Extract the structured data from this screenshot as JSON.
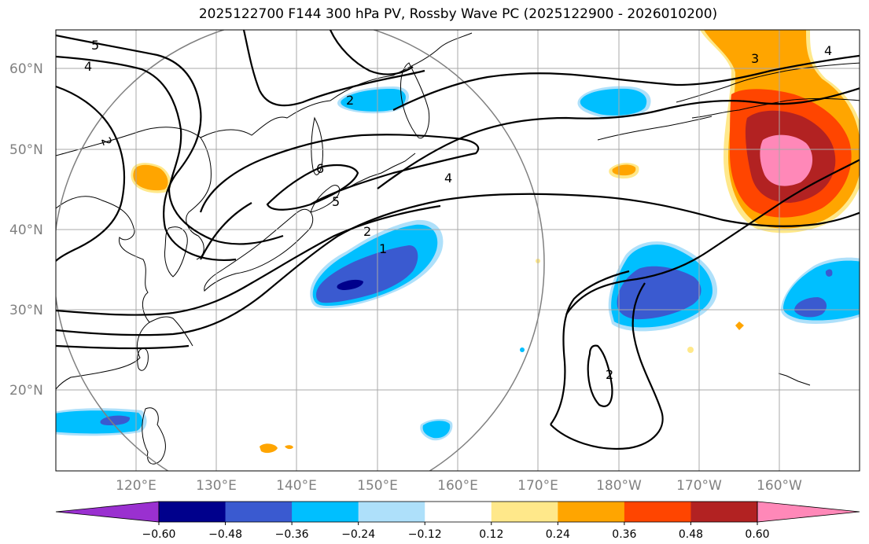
{
  "title": "2025122700 F144 300 hPa PV, Rossby Wave PC (2025122900 - 2026010200)",
  "map": {
    "lat_labels": [
      "60°N",
      "50°N",
      "40°N",
      "30°N",
      "20°N"
    ],
    "lon_labels": [
      "120°E",
      "130°E",
      "140°E",
      "150°E",
      "160°E",
      "170°E",
      "180°W",
      "170°W",
      "160°W"
    ],
    "contour_labels": [
      "5",
      "4",
      "2",
      "6",
      "5",
      "4",
      "2",
      "1",
      "3",
      "4",
      "2",
      "2"
    ]
  },
  "colorbar": {
    "ticks": [
      "−0.60",
      "−0.48",
      "−0.36",
      "−0.24",
      "−0.12",
      "0.12",
      "0.24",
      "0.36",
      "0.48",
      "0.60"
    ],
    "colors": [
      "#9a30d0",
      "#00008c",
      "#3a5ad0",
      "#00bfff",
      "#aee0fa",
      "#ffffff",
      "#ffe88a",
      "#ffa500",
      "#ff4500",
      "#b22222",
      "#ff88b8"
    ]
  },
  "colors": {
    "neg_strong": "#00008c",
    "neg_mid": "#3a5ad0",
    "neg_light": "#00bfff",
    "neg_faint": "#aee0fa",
    "pos_faint": "#ffe88a",
    "pos_light": "#ffa500",
    "pos_mid": "#ff4500",
    "pos_strong": "#b22222",
    "pos_max": "#ff88b8"
  }
}
